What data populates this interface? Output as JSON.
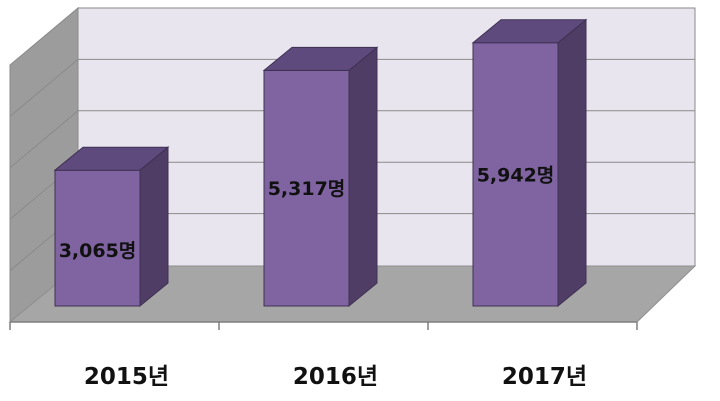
{
  "chart_data": {
    "type": "bar",
    "style": "3d",
    "categories": [
      "2015년",
      "2016년",
      "2017년"
    ],
    "values": [
      3065,
      5317,
      5942
    ],
    "value_labels": [
      "3,065명",
      "5,317명",
      "5,942명"
    ],
    "ylim": [
      0,
      6500
    ],
    "grid": true,
    "title": "",
    "xlabel": "",
    "ylabel": ""
  },
  "colors": {
    "bar_front": "#8064A2",
    "bar_side": "#4F3D66",
    "bar_top": "#5F4A7E",
    "back_wall": "#E9E5EF",
    "side_wall": "#9C9C9C",
    "floor": "#A6A6A6",
    "gridline": "#8A8A8A"
  }
}
